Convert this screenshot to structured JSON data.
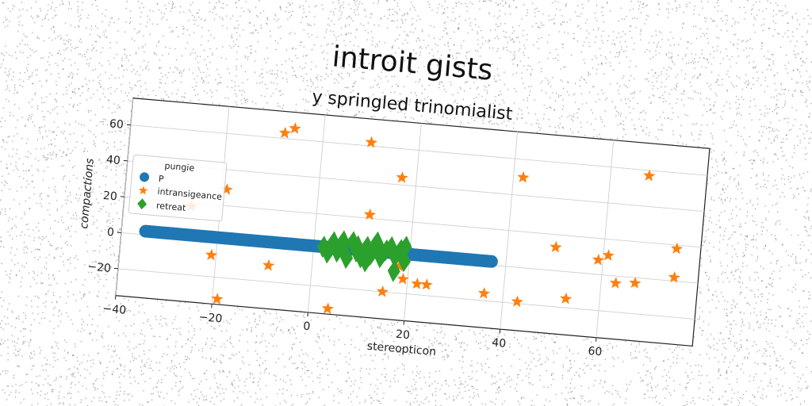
{
  "chart_data": {
    "type": "scatter",
    "title": "introit gists",
    "subtitle": "y springled trinomialist",
    "xlabel": "stereopticon",
    "ylabel": "compactions",
    "xlim": [
      -40,
      80
    ],
    "ylim": [
      -35,
      75
    ],
    "xticks": [
      -40,
      -20,
      0,
      20,
      40,
      60
    ],
    "xtick_labels": [
      "−40",
      "−20",
      "0",
      "20",
      "40",
      "60"
    ],
    "yticks": [
      -20,
      0,
      20,
      40,
      60
    ],
    "ytick_labels": [
      "−20",
      "0",
      "20",
      "40",
      "60"
    ],
    "grid": true,
    "legend": {
      "title": "pungie",
      "placement": "center-left",
      "entries": [
        "P",
        "intransigeance",
        "retreat"
      ]
    },
    "series": [
      {
        "name": "P",
        "marker": "circle",
        "color": "#1f77b4",
        "x_range": [
          -35,
          37
        ],
        "y": 2
      },
      {
        "name": "intransigeance",
        "marker": "star",
        "color": "#ff7f0e",
        "points": [
          [
            -6,
            66
          ],
          [
            -8,
            63
          ],
          [
            10,
            62
          ],
          [
            -19,
            29
          ],
          [
            17,
            44
          ],
          [
            42,
            50
          ],
          [
            68,
            57
          ],
          [
            -26,
            18
          ],
          [
            11,
            22
          ],
          [
            50,
            13
          ],
          [
            59,
            8
          ],
          [
            61,
            11
          ],
          [
            75,
            18
          ],
          [
            75,
            2
          ],
          [
            -21,
            -8
          ],
          [
            -9,
            -11
          ],
          [
            18,
            -5
          ],
          [
            19,
            -12
          ],
          [
            22,
            -14
          ],
          [
            24,
            -14
          ],
          [
            15,
            -20
          ],
          [
            36,
            -16
          ],
          [
            43,
            -19
          ],
          [
            53,
            -15
          ],
          [
            63,
            -4
          ],
          [
            67,
            -3
          ],
          [
            -19,
            -32
          ],
          [
            4,
            -32
          ]
        ]
      },
      {
        "name": "retreat",
        "marker": "diamond",
        "color": "#2ca02c",
        "points": [
          [
            2,
            2
          ],
          [
            3,
            -1
          ],
          [
            4,
            5
          ],
          [
            5,
            0
          ],
          [
            6,
            3
          ],
          [
            7,
            -3
          ],
          [
            8,
            6
          ],
          [
            9,
            1
          ],
          [
            10,
            -2
          ],
          [
            11,
            4
          ],
          [
            12,
            0
          ],
          [
            13,
            7
          ],
          [
            14,
            -1
          ],
          [
            15,
            3
          ],
          [
            16,
            5
          ],
          [
            17,
            0
          ],
          [
            18,
            4
          ],
          [
            19,
            -2
          ],
          [
            17,
            -8
          ],
          [
            19,
            6
          ],
          [
            11,
            -4
          ],
          [
            6,
            6
          ],
          [
            9,
            4
          ],
          [
            14,
            2
          ]
        ]
      }
    ]
  }
}
